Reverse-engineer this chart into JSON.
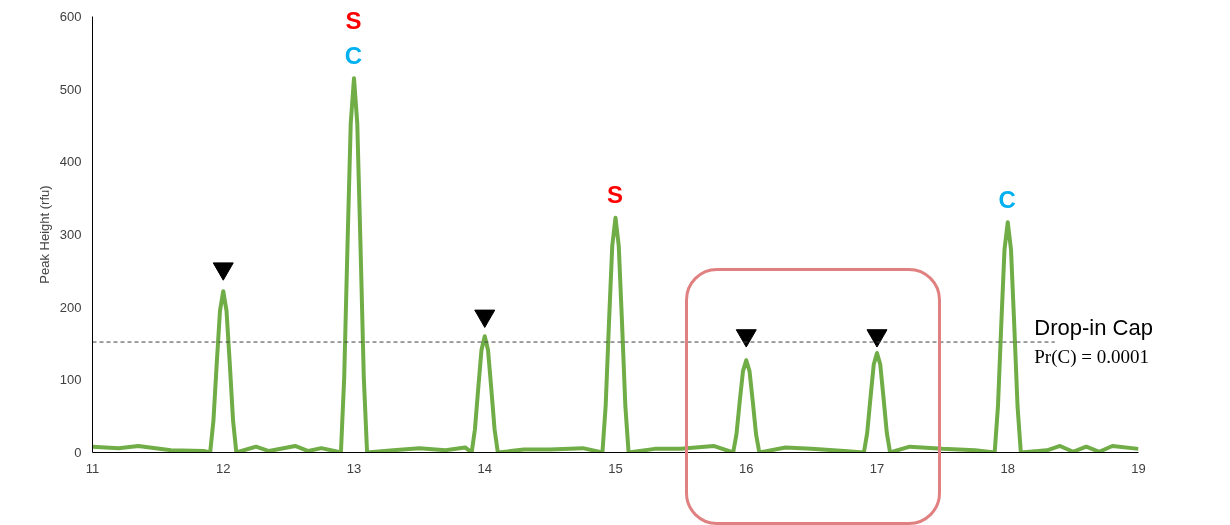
{
  "chart_data": {
    "type": "line",
    "ylabel": "Peak Height (rfu)",
    "series": [
      {
        "color": "#70ad47",
        "x": [
          11.0,
          11.2,
          11.35,
          11.6,
          11.85,
          11.9,
          11.925,
          11.95,
          11.975,
          12.0,
          12.025,
          12.05,
          12.075,
          12.1,
          12.25,
          12.35,
          12.55,
          12.65,
          12.75,
          12.85,
          12.9,
          12.925,
          12.95,
          12.975,
          13.0,
          13.025,
          13.05,
          13.075,
          13.1,
          13.3,
          13.5,
          13.7,
          13.85,
          13.9,
          13.925,
          13.95,
          13.975,
          14.0,
          14.025,
          14.05,
          14.075,
          14.1,
          14.3,
          14.5,
          14.75,
          14.9,
          14.925,
          14.95,
          14.975,
          15.0,
          15.025,
          15.05,
          15.075,
          15.1,
          15.3,
          15.5,
          15.75,
          15.9,
          15.925,
          15.95,
          15.975,
          16.0,
          16.025,
          16.05,
          16.075,
          16.1,
          16.3,
          16.5,
          16.75,
          16.9,
          16.925,
          16.95,
          16.975,
          17.0,
          17.025,
          17.05,
          17.075,
          17.1,
          17.25,
          17.5,
          17.75,
          17.9,
          17.925,
          17.95,
          17.975,
          18.0,
          18.025,
          18.05,
          18.075,
          18.1,
          18.3,
          18.4,
          18.5,
          18.6,
          18.7,
          18.8,
          19.0
        ],
        "values": [
          8,
          6,
          9,
          3,
          2,
          0,
          44,
          122,
          195,
          222,
          195,
          122,
          44,
          0,
          8,
          2,
          9,
          2,
          6,
          2,
          0,
          103,
          283,
          453,
          515,
          453,
          283,
          103,
          0,
          3,
          6,
          3,
          7,
          0,
          32,
          88,
          141,
          160,
          141,
          88,
          32,
          0,
          4,
          4,
          6,
          0,
          65,
          178,
          284,
          323,
          284,
          178,
          65,
          0,
          5,
          5,
          9,
          0,
          25,
          70,
          112,
          127,
          112,
          70,
          25,
          0,
          7,
          5,
          2,
          0,
          27,
          75,
          121,
          137,
          121,
          75,
          27,
          0,
          8,
          5,
          3,
          0,
          63,
          174,
          279,
          317,
          279,
          174,
          63,
          0,
          3,
          9,
          1,
          8,
          1,
          9,
          5
        ]
      },
      {
        "type": "scatter",
        "marker": "triangle",
        "color": "#000000",
        "x": [
          12,
          14,
          16,
          17
        ],
        "values": [
          253,
          188,
          161,
          161
        ]
      }
    ],
    "xlim": [
      11,
      19
    ],
    "xticks": [
      11,
      12,
      13,
      14,
      15,
      16,
      17,
      18,
      19
    ],
    "ylim": [
      0,
      600
    ],
    "yticks": [
      0,
      100,
      200,
      300,
      400,
      500,
      600
    ],
    "grid": false,
    "marker": "none",
    "line_style": "solid",
    "ref_lines": [
      {
        "axis": "y",
        "value": 152,
        "label": "Drop-in Cap",
        "color": "#404040",
        "line_style": "dashed"
      }
    ],
    "annotations": [
      "Pr(C) = 0.0001",
      {
        "text": "C",
        "x": 13,
        "y": 515
      },
      {
        "text": "S",
        "x": 13,
        "y": 515
      },
      {
        "text": "S",
        "x": 15,
        "y": 323
      },
      {
        "text": "C",
        "x": 18,
        "y": 317
      }
    ]
  }
}
